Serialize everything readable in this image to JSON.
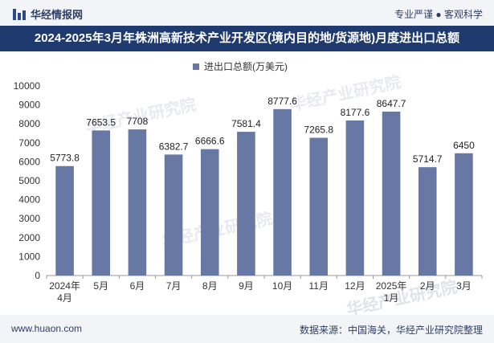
{
  "header": {
    "brand": "华经情报网",
    "tagline": "专业严谨 ● 客观科学"
  },
  "chart_data": {
    "type": "bar",
    "title": "2024-2025年3月年株洲高新技术产业开发区(境内目的地/货源地)月度进出口总额",
    "legend": [
      "进出口总额(万美元)"
    ],
    "categories": [
      "2024年\n4月",
      "5月",
      "6月",
      "7月",
      "8月",
      "9月",
      "10月",
      "11月",
      "12月",
      "2025年\n1月",
      "2月",
      "3月"
    ],
    "series": [
      {
        "name": "进出口总额(万美元)",
        "values": [
          5773.8,
          7653.5,
          7708,
          6382.7,
          6666.6,
          7581.4,
          8777.6,
          7265.8,
          8177.6,
          8647.7,
          5714.7,
          6450
        ]
      }
    ],
    "value_labels": [
      "5773.8",
      "7653.5",
      "7708",
      "6382.7",
      "6666.6",
      "7581.4",
      "8777.6",
      "7265.8",
      "8177.6",
      "8647.7",
      "5714.7",
      "6450"
    ],
    "ylim": [
      0,
      10000
    ],
    "yticks": [
      0,
      1000,
      2000,
      3000,
      4000,
      5000,
      6000,
      7000,
      8000,
      9000,
      10000
    ],
    "bar_color": "#6878a4"
  },
  "watermark": "华经产业研究院",
  "footer": {
    "url": "www.huaon.com",
    "source": "数据来源：中国海关，华经产业研究院整理"
  }
}
